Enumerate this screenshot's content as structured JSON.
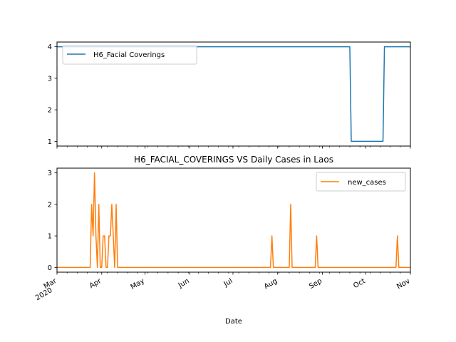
{
  "chart_data": [
    {
      "type": "line",
      "title": "",
      "xlabel": "",
      "ylabel": "",
      "xlim": [
        "2020-03-01",
        "2020-11-01"
      ],
      "ylim": [
        0.85,
        4.15
      ],
      "yticks": [
        1,
        2,
        3,
        4
      ],
      "grid": false,
      "legend_position": "upper left",
      "series": [
        {
          "name": "H6_Facial Coverings",
          "color": "#1f77b4",
          "x": [
            "2020-03-01",
            "2020-09-20",
            "2020-09-21",
            "2020-10-13",
            "2020-10-14",
            "2020-11-01"
          ],
          "y": [
            4,
            4,
            1,
            1,
            4,
            4
          ]
        }
      ]
    },
    {
      "type": "line",
      "title": "H6_FACIAL_COVERINGS VS Daily Cases in Laos",
      "xlabel": "Date",
      "ylabel": "",
      "xlim": [
        "2020-03-01",
        "2020-11-01"
      ],
      "ylim": [
        -0.15,
        3.15
      ],
      "yticks": [
        0,
        1,
        2,
        3
      ],
      "xtick_labels": [
        {
          "date": "2020-03-01",
          "label": "Mar",
          "sublabel": "2020"
        },
        {
          "date": "2020-04-01",
          "label": "Apr",
          "sublabel": ""
        },
        {
          "date": "2020-05-01",
          "label": "May",
          "sublabel": ""
        },
        {
          "date": "2020-06-01",
          "label": "Jun",
          "sublabel": ""
        },
        {
          "date": "2020-07-01",
          "label": "Jul",
          "sublabel": ""
        },
        {
          "date": "2020-08-01",
          "label": "Aug",
          "sublabel": ""
        },
        {
          "date": "2020-09-01",
          "label": "Sep",
          "sublabel": ""
        },
        {
          "date": "2020-10-01",
          "label": "Oct",
          "sublabel": ""
        },
        {
          "date": "2020-11-01",
          "label": "Nov",
          "sublabel": ""
        }
      ],
      "grid": false,
      "legend_position": "upper right",
      "series": [
        {
          "name": "new_cases",
          "color": "#ff7f0e",
          "x": [
            "2020-03-01",
            "2020-03-24",
            "2020-03-25",
            "2020-03-26",
            "2020-03-27",
            "2020-03-28",
            "2020-03-29",
            "2020-03-30",
            "2020-03-31",
            "2020-04-01",
            "2020-04-02",
            "2020-04-03",
            "2020-04-04",
            "2020-04-05",
            "2020-04-06",
            "2020-04-07",
            "2020-04-08",
            "2020-04-09",
            "2020-04-10",
            "2020-04-11",
            "2020-04-12",
            "2020-04-13",
            "2020-07-27",
            "2020-07-28",
            "2020-07-29",
            "2020-08-09",
            "2020-08-10",
            "2020-08-11",
            "2020-08-27",
            "2020-08-28",
            "2020-08-29",
            "2020-10-22",
            "2020-10-23",
            "2020-10-24",
            "2020-11-01"
          ],
          "y": [
            0,
            0,
            2,
            1,
            3,
            1,
            0,
            2,
            0,
            0,
            1,
            1,
            0,
            0,
            1,
            1,
            2,
            1,
            0,
            2,
            0,
            0,
            0,
            1,
            0,
            0,
            2,
            0,
            0,
            1,
            0,
            0,
            1,
            0,
            0
          ]
        }
      ]
    }
  ]
}
